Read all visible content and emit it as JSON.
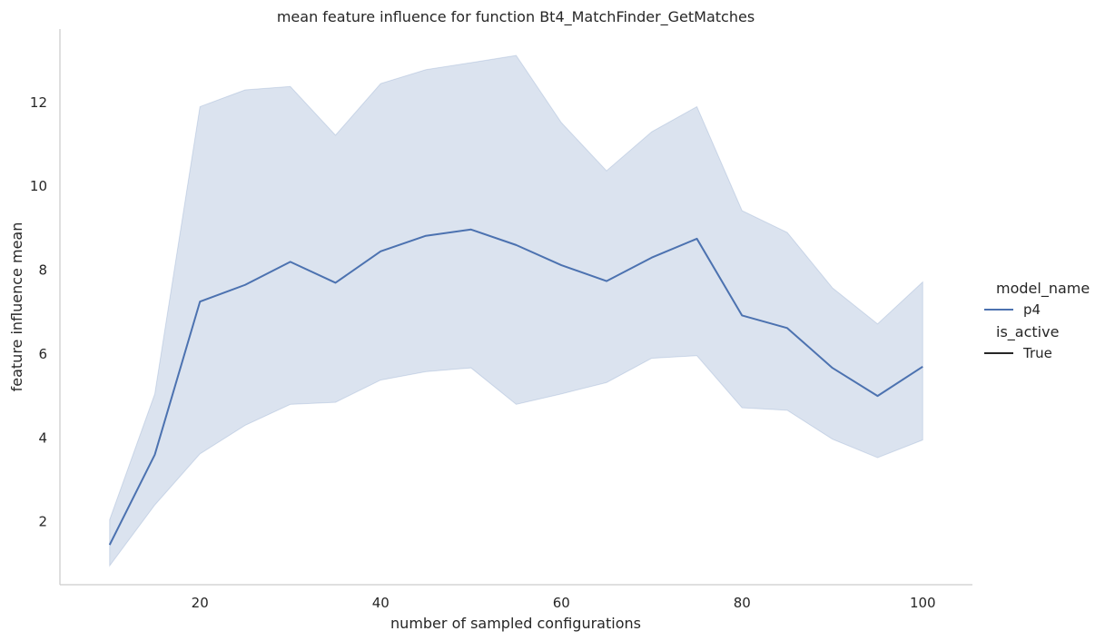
{
  "chart_data": {
    "type": "line",
    "title": "mean feature influence for function Bt4_MatchFinder_GetMatches",
    "xlabel": "number of sampled configurations",
    "ylabel": "feature influence mean",
    "xlim": [
      4.5,
      105.5
    ],
    "ylim": [
      0.5,
      13.75
    ],
    "xticks": [
      20,
      40,
      60,
      80,
      100
    ],
    "yticks": [
      2,
      4,
      6,
      8,
      10,
      12
    ],
    "grid": false,
    "legend_position": "right",
    "legend": {
      "hue_title": "model_name",
      "hue_entries": [
        "p4"
      ],
      "style_title": "is_active",
      "style_entries": [
        "True"
      ]
    },
    "colors": {
      "line": "#4c72b0",
      "band": "#4c72b0",
      "style_marker": "#262626"
    },
    "x": [
      10,
      15,
      20,
      25,
      30,
      35,
      40,
      45,
      50,
      55,
      60,
      65,
      70,
      75,
      80,
      85,
      90,
      95,
      100
    ],
    "series": [
      {
        "name": "p4",
        "values": [
          1.45,
          3.6,
          7.25,
          7.65,
          8.2,
          7.7,
          8.45,
          8.82,
          8.97,
          8.6,
          8.12,
          7.74,
          8.3,
          8.75,
          6.92,
          6.62,
          5.67,
          5.0,
          5.7
        ],
        "ci_upper": [
          2.05,
          5.05,
          11.9,
          12.3,
          12.38,
          11.22,
          12.45,
          12.78,
          12.95,
          13.12,
          11.52,
          10.37,
          11.3,
          11.9,
          9.42,
          8.9,
          7.58,
          6.72,
          7.72
        ],
        "ci_lower": [
          0.95,
          2.4,
          3.62,
          4.3,
          4.8,
          4.85,
          5.38,
          5.58,
          5.67,
          4.8,
          5.05,
          5.32,
          5.9,
          5.96,
          4.72,
          4.66,
          3.97,
          3.53,
          3.95
        ]
      }
    ]
  }
}
